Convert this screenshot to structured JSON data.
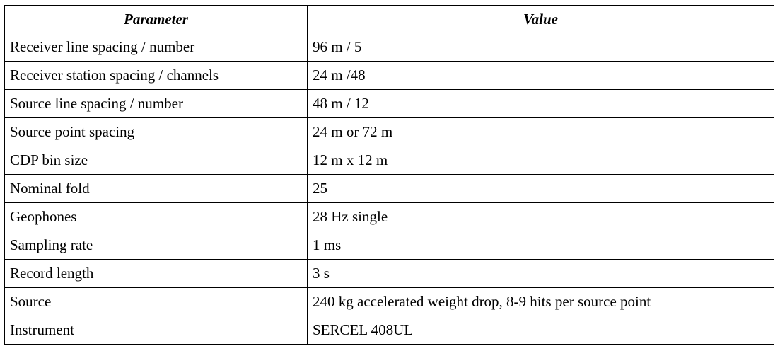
{
  "table": {
    "headers": [
      "Parameter",
      "Value"
    ],
    "rows": [
      [
        "Receiver line spacing / number",
        "96 m / 5"
      ],
      [
        "Receiver station spacing / channels",
        "24 m /48"
      ],
      [
        "Source line spacing / number",
        "48 m / 12"
      ],
      [
        "Source point spacing",
        "24 m or 72 m"
      ],
      [
        "CDP bin size",
        "12 m x 12 m"
      ],
      [
        "Nominal fold",
        "25"
      ],
      [
        "Geophones",
        "28 Hz single"
      ],
      [
        "Sampling rate",
        "1 ms"
      ],
      [
        "Record length",
        "3 s"
      ],
      [
        "Source",
        "240 kg accelerated weight drop, 8-9 hits per source point"
      ],
      [
        "Instrument",
        "SERCEL 408UL"
      ]
    ]
  }
}
